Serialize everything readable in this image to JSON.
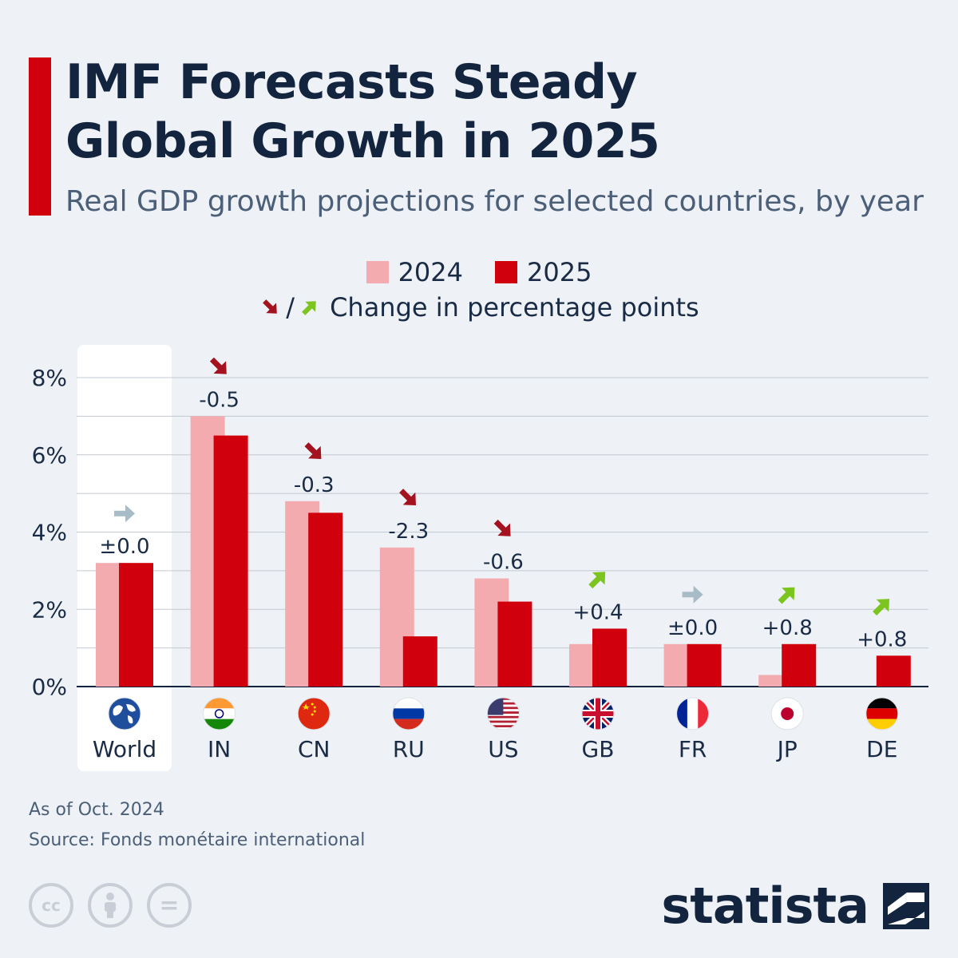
{
  "header": {
    "title_line1": "IMF Forecasts Steady",
    "title_line2": "Global Growth in 2025",
    "subtitle": "Real GDP growth projections for selected countries, by year"
  },
  "legend": {
    "series_2024": "2024",
    "series_2025": "2025",
    "slash": "/",
    "change_label": "Change in percentage points"
  },
  "colors": {
    "accent": "#d0000c",
    "series_2024": "#f4abb0",
    "series_2025": "#d0000c",
    "arrow_down": "#a3121e",
    "arrow_up": "#7cc51f",
    "arrow_flat": "#a8bcc8",
    "grid": "#c3c9d1",
    "highlight": "#ffffff",
    "title": "#13243f"
  },
  "chart_data": {
    "type": "bar",
    "y_ticks": [
      "8%",
      "6%",
      "4%",
      "2%",
      "0%"
    ],
    "ylim": [
      0,
      8
    ],
    "categories": [
      "World",
      "IN",
      "CN",
      "RU",
      "US",
      "GB",
      "FR",
      "JP",
      "DE"
    ],
    "series": [
      {
        "name": "2024",
        "values": [
          3.2,
          7.0,
          4.8,
          3.6,
          2.8,
          1.1,
          1.1,
          0.3,
          0.0
        ]
      },
      {
        "name": "2025",
        "values": [
          3.2,
          6.5,
          4.5,
          1.3,
          2.2,
          1.5,
          1.1,
          1.1,
          0.8
        ]
      }
    ],
    "change_labels": [
      "±0.0",
      "-0.5",
      "-0.3",
      "-2.3",
      "-0.6",
      "+0.4",
      "±0.0",
      "+0.8",
      "+0.8"
    ],
    "change_direction": [
      "flat",
      "down",
      "down",
      "down",
      "down",
      "up",
      "flat",
      "up",
      "up"
    ],
    "flag_icons": [
      "world-globe-icon",
      "india-flag-icon",
      "china-flag-icon",
      "russia-flag-icon",
      "usa-flag-icon",
      "uk-flag-icon",
      "france-flag-icon",
      "japan-flag-icon",
      "germany-flag-icon"
    ]
  },
  "footer": {
    "as_of": "As of Oct. 2024",
    "source": "Source: Fonds monétaire international",
    "cc_label": "cc",
    "equals_label": "=",
    "brand": "statista"
  }
}
